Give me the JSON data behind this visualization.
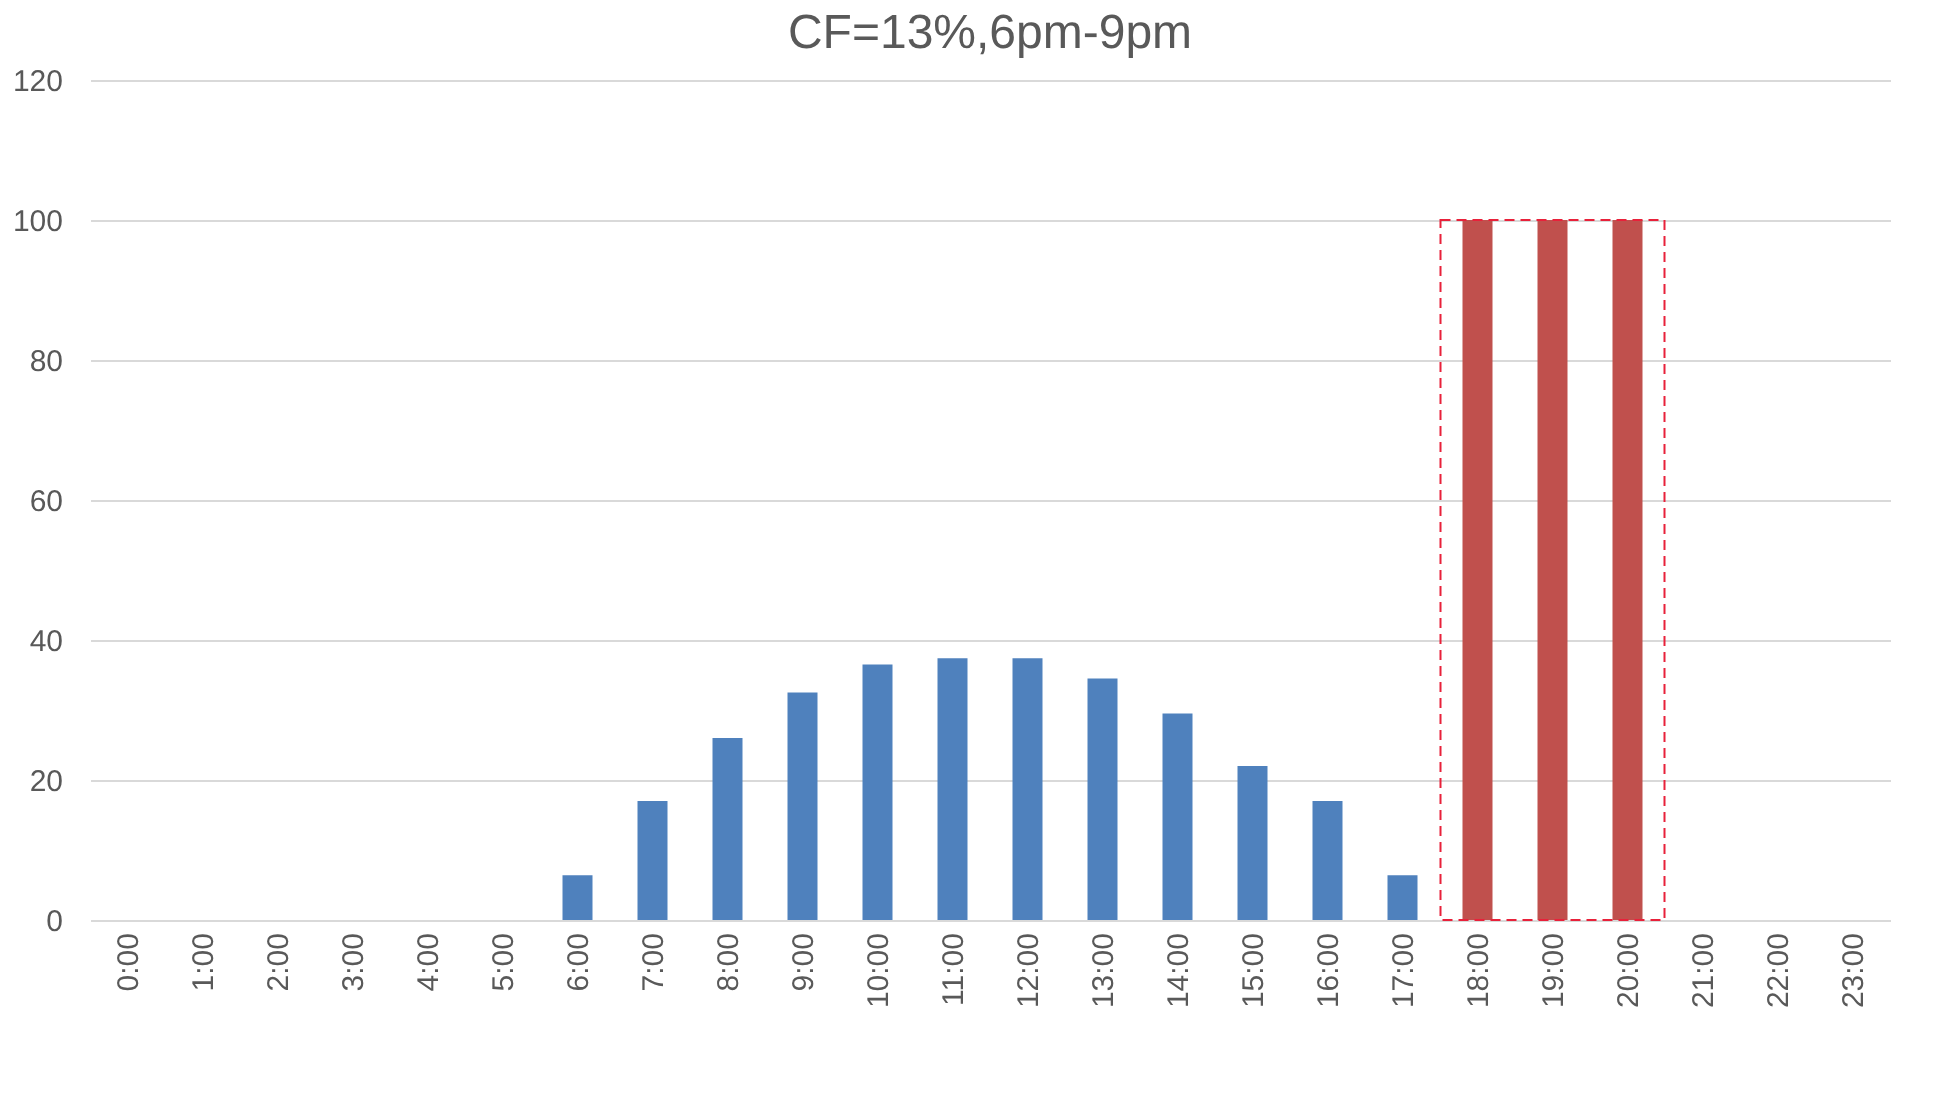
{
  "chart_data": {
    "type": "bar",
    "title": "CF=13%,6pm-9pm",
    "categories": [
      "0:00",
      "1:00",
      "2:00",
      "3:00",
      "4:00",
      "5:00",
      "6:00",
      "7:00",
      "8:00",
      "9:00",
      "10:00",
      "11:00",
      "12:00",
      "13:00",
      "14:00",
      "15:00",
      "16:00",
      "17:00",
      "18:00",
      "19:00",
      "20:00",
      "21:00",
      "22:00",
      "23:00"
    ],
    "series": [
      {
        "color": "#4f81bd",
        "values": [
          0,
          0,
          0,
          0,
          0,
          0,
          6.4,
          17,
          26,
          32.5,
          36.5,
          37.4,
          37.4,
          34.5,
          29.5,
          22,
          17,
          6.4,
          null,
          null,
          null,
          0,
          0,
          0
        ]
      },
      {
        "color": "#c0504d",
        "values": [
          null,
          null,
          null,
          null,
          null,
          null,
          null,
          null,
          null,
          null,
          null,
          null,
          null,
          null,
          null,
          null,
          null,
          null,
          100,
          100,
          100,
          null,
          null,
          null
        ]
      }
    ],
    "ylim": [
      0,
      120
    ],
    "yticks": [
      0,
      20,
      40,
      60,
      80,
      100,
      120
    ],
    "grid": "y"
  }
}
